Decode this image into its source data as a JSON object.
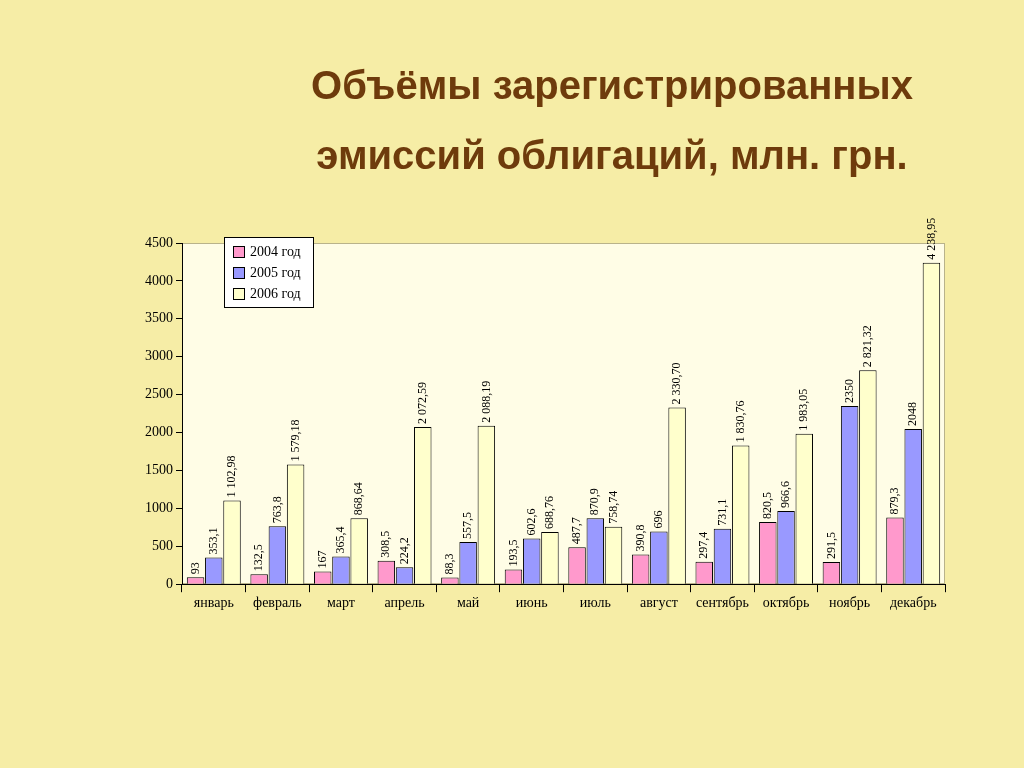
{
  "chart_data": {
    "type": "bar",
    "title": "Объёмы зарегистрированных эмиссий облигаций, млн. грн.",
    "categories": [
      "январь",
      "февраль",
      "март",
      "апрель",
      "май",
      "июнь",
      "июль",
      "август",
      "сентябрь",
      "октябрь",
      "ноябрь",
      "декабрь"
    ],
    "series": [
      {
        "name": "2004 год",
        "color": "#ff99cc",
        "values": [
          93,
          132.5,
          167,
          308.5,
          88.3,
          193.5,
          487.7,
          390.8,
          297.4,
          820.5,
          291.5,
          879.3
        ],
        "value_labels": [
          "93",
          "132,5",
          "167",
          "308,5",
          "88,3",
          "193,5",
          "487,7",
          "390,8",
          "297,4",
          "820,5",
          "291,5",
          "879,3"
        ]
      },
      {
        "name": "2005 год",
        "color": "#9999ff",
        "values": [
          353.1,
          763.8,
          365.4,
          224.2,
          557.5,
          602.6,
          870.9,
          696,
          731.1,
          966.6,
          2350,
          2048
        ],
        "value_labels": [
          "353,1",
          "763,8",
          "365,4",
          "224,2",
          "557,5",
          "602,6",
          "870,9",
          "696",
          "731,1",
          "966,6",
          "2350",
          "2048"
        ]
      },
      {
        "name": "2006 год",
        "color": "#ffffcc",
        "values": [
          1102.98,
          1579.18,
          868.64,
          2072.59,
          2088.19,
          688.76,
          758.74,
          2330.7,
          1830.76,
          1983.05,
          2821.32,
          4238.95
        ],
        "value_labels": [
          "1 102,98",
          "1 579,18",
          "868,64",
          "2 072,59",
          "2 088,19",
          "688,76",
          "758,74",
          "2 330,70",
          "1 830,76",
          "1 983,05",
          "2 821,32",
          "4 238,95"
        ]
      }
    ],
    "ylim": [
      0,
      4500
    ],
    "yticks": [
      0,
      500,
      1000,
      1500,
      2000,
      2500,
      3000,
      3500,
      4000,
      4500
    ],
    "grid": false,
    "legend": "top left"
  }
}
